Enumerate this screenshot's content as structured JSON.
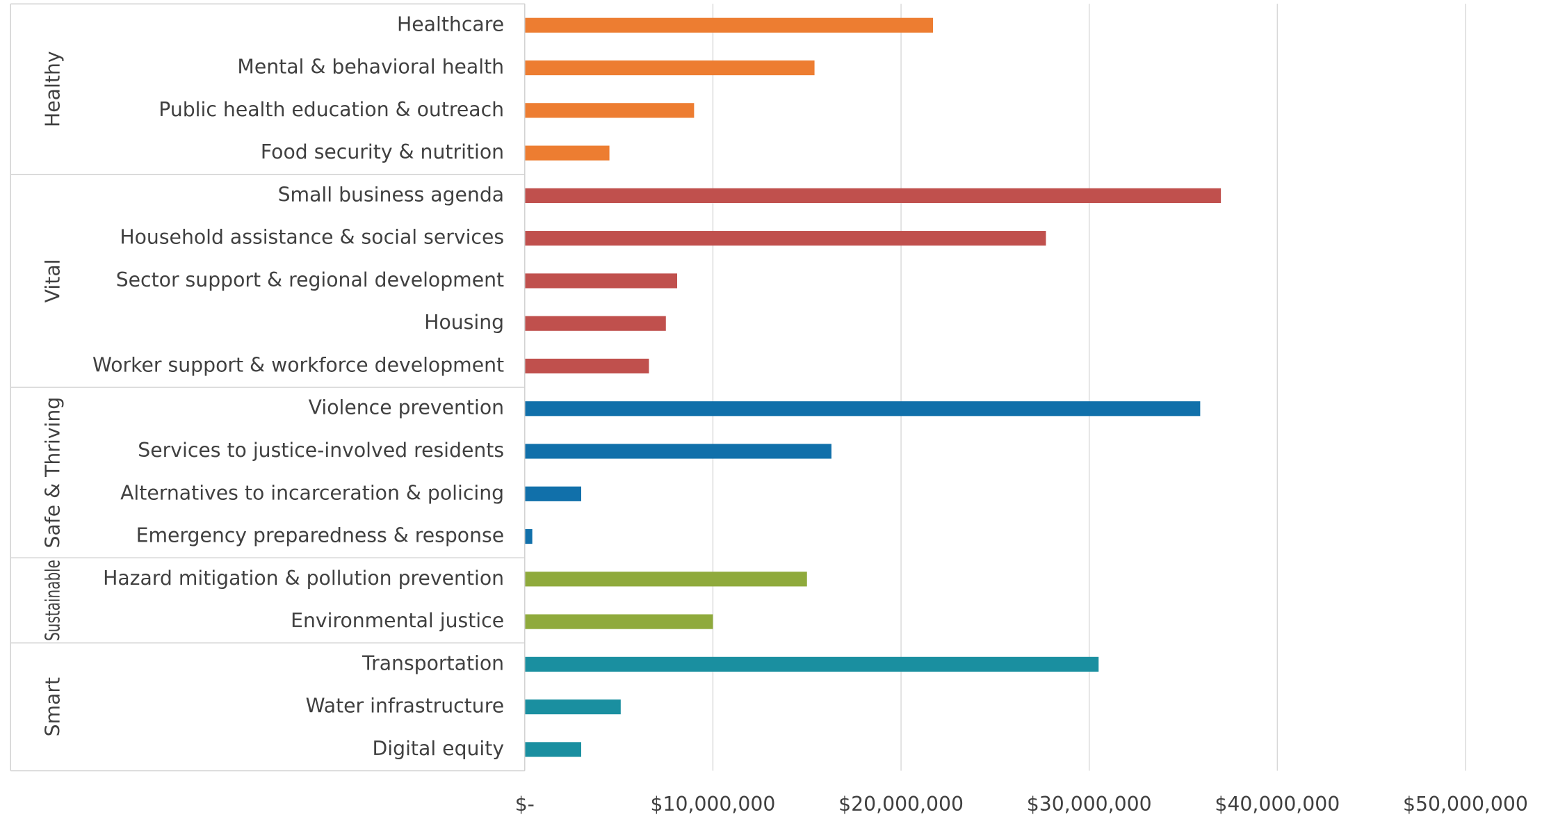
{
  "chart_data": {
    "type": "bar",
    "orientation": "horizontal",
    "groups": [
      {
        "name": "Healthy",
        "color": "#ed7d31",
        "categories": [
          "Healthcare",
          "Mental & behavioral health",
          "Public health education & outreach",
          "Food security & nutrition"
        ],
        "values": [
          21700000,
          15400000,
          9000000,
          4500000
        ]
      },
      {
        "name": "Vital",
        "color": "#c0504d",
        "categories": [
          "Small business agenda",
          "Household assistance & social services",
          "Sector support & regional development",
          "Housing",
          "Worker support & workforce development"
        ],
        "values": [
          37000000,
          27700000,
          8100000,
          7500000,
          6600000
        ]
      },
      {
        "name": "Safe & Thriving",
        "color": "#1170aa",
        "categories": [
          "Violence prevention",
          "Services to justice-involved residents",
          "Alternatives to incarceration & policing",
          "Emergency preparedness & response"
        ],
        "values": [
          35900000,
          16300000,
          3000000,
          400000
        ]
      },
      {
        "name": "Sustainable",
        "color": "#8faa3c",
        "categories": [
          "Hazard mitigation & pollution prevention",
          "Environmental justice"
        ],
        "values": [
          15000000,
          10000000
        ]
      },
      {
        "name": "Smart",
        "color": "#1a8fa0",
        "categories": [
          "Transportation",
          "Water infrastructure",
          "Digital equity"
        ],
        "values": [
          30500000,
          5100000,
          3000000
        ]
      }
    ],
    "xlim": [
      0,
      50000000
    ],
    "xticks": [
      {
        "value": 0,
        "label": "$-"
      },
      {
        "value": 10000000,
        "label": "$10,000,000"
      },
      {
        "value": 20000000,
        "label": "$20,000,000"
      },
      {
        "value": 30000000,
        "label": "$30,000,000"
      },
      {
        "value": 40000000,
        "label": "$40,000,000"
      },
      {
        "value": 50000000,
        "label": "$50,000,000"
      }
    ],
    "grid": true
  }
}
